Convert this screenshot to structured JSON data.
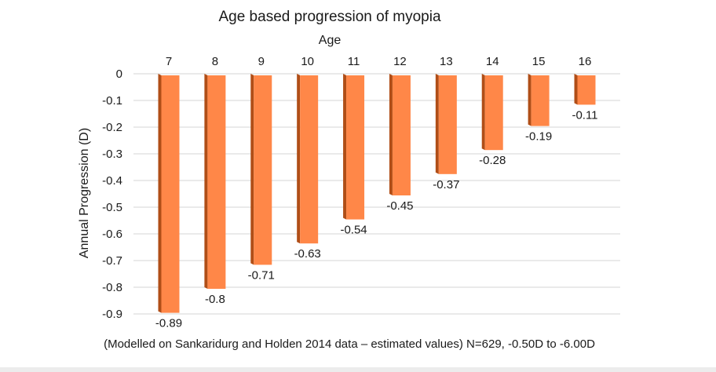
{
  "chart_data": {
    "type": "bar",
    "title": "Age based progression of myopia",
    "xlabel": "Age",
    "ylabel": "Annual Progression (D)",
    "categories": [
      "7",
      "8",
      "9",
      "10",
      "11",
      "12",
      "13",
      "14",
      "15",
      "16"
    ],
    "values": [
      -0.89,
      -0.8,
      -0.71,
      -0.63,
      -0.54,
      -0.45,
      -0.37,
      -0.28,
      -0.19,
      -0.11
    ],
    "data_labels": [
      "-0.89",
      "-0.8",
      "-0.71",
      "-0.63",
      "-0.54",
      "-0.45",
      "-0.37",
      "-0.28",
      "-0.19",
      "-0.11"
    ],
    "yticks": [
      0,
      -0.1,
      -0.2,
      -0.3,
      -0.4,
      -0.5,
      -0.6,
      -0.7,
      -0.8,
      -0.9
    ],
    "ytick_labels": [
      "0",
      "-0.1",
      "-0.2",
      "-0.3",
      "-0.4",
      "-0.5",
      "-0.6",
      "-0.7",
      "-0.8",
      "-0.9"
    ],
    "ylim": [
      -0.9,
      0
    ],
    "x_axis_position": "top",
    "grid": true,
    "legend": "none",
    "bar_style": "3d",
    "colors": {
      "bar_front": "#ff8748",
      "bar_side": "#b04e17",
      "grid": "#d6d6d6",
      "text": "#1a1a1a"
    },
    "footnote": "(Modelled on Sankaridurg and Holden 2014 data – estimated values) N=629, -0.50D to -6.00D"
  }
}
